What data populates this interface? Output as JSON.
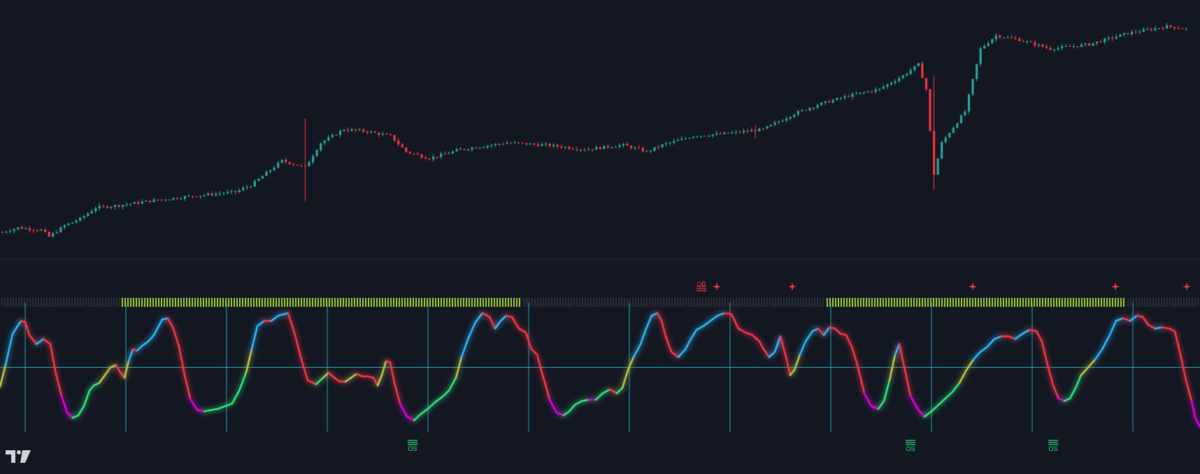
{
  "colors": {
    "background": "#131722",
    "separator": "#2a2e39",
    "candle_up": "#26a69a",
    "candle_down": "#f23645",
    "osc_bull": "#29b6f6",
    "osc_bear": "#f23645",
    "osc_rising_from_low": "#2ee37b",
    "osc_falling_low": "#d600d6",
    "osc_mid": "#b6c24a",
    "midline": "#26c6da",
    "cycle_line": "#26c6da",
    "regime_on": "#9acd32",
    "regime_off": "#2a2e39",
    "signal_os": "#2ee37b",
    "signal_ob": "#f23645"
  },
  "logo": {
    "icon": "tradingview-logo-icon"
  },
  "chart_data": [
    {
      "type": "candlestick",
      "title": "",
      "price_trend": [
        [
          0,
          0.04
        ],
        [
          4,
          0.06
        ],
        [
          10,
          0.05
        ],
        [
          12,
          0.02
        ],
        [
          16,
          0.07
        ],
        [
          20,
          0.1
        ],
        [
          24,
          0.15
        ],
        [
          30,
          0.16
        ],
        [
          38,
          0.18
        ],
        [
          48,
          0.2
        ],
        [
          60,
          0.22
        ],
        [
          64,
          0.25
        ],
        [
          72,
          0.36
        ],
        [
          78,
          0.33
        ],
        [
          82,
          0.44
        ],
        [
          88,
          0.5
        ],
        [
          94,
          0.49
        ],
        [
          100,
          0.47
        ],
        [
          104,
          0.4
        ],
        [
          110,
          0.37
        ],
        [
          118,
          0.41
        ],
        [
          130,
          0.44
        ],
        [
          140,
          0.43
        ],
        [
          150,
          0.41
        ],
        [
          160,
          0.43
        ],
        [
          166,
          0.4
        ],
        [
          170,
          0.43
        ],
        [
          178,
          0.47
        ],
        [
          186,
          0.48
        ],
        [
          196,
          0.5
        ],
        [
          204,
          0.57
        ],
        [
          210,
          0.61
        ],
        [
          218,
          0.65
        ],
        [
          226,
          0.68
        ],
        [
          232,
          0.74
        ],
        [
          236,
          0.79
        ],
        [
          238,
          0.68
        ],
        [
          240,
          0.3
        ],
        [
          242,
          0.44
        ],
        [
          248,
          0.58
        ],
        [
          252,
          0.86
        ],
        [
          256,
          0.92
        ],
        [
          262,
          0.9
        ],
        [
          270,
          0.86
        ],
        [
          280,
          0.88
        ],
        [
          290,
          0.93
        ],
        [
          300,
          0.96
        ],
        [
          305,
          0.95
        ]
      ],
      "wick_spikes": [
        [
          78,
          0.18,
          0.55
        ],
        [
          240,
          0.23,
          0.74
        ],
        [
          194,
          0.46,
          0.52
        ]
      ]
    },
    {
      "type": "line",
      "title": "",
      "xlim": [
        0,
        1716
      ],
      "ylim": [
        0,
        100
      ],
      "midline": 50,
      "series_points": [
        [
          0,
          35
        ],
        [
          8,
          52
        ],
        [
          18,
          76
        ],
        [
          30,
          86
        ],
        [
          36,
          85
        ],
        [
          42,
          75
        ],
        [
          52,
          68
        ],
        [
          62,
          72
        ],
        [
          72,
          68
        ],
        [
          80,
          45
        ],
        [
          88,
          28
        ],
        [
          96,
          15
        ],
        [
          104,
          11
        ],
        [
          112,
          13
        ],
        [
          120,
          20
        ],
        [
          128,
          32
        ],
        [
          134,
          36
        ],
        [
          142,
          38
        ],
        [
          150,
          44
        ],
        [
          158,
          50
        ],
        [
          166,
          52
        ],
        [
          172,
          46
        ],
        [
          178,
          42
        ],
        [
          184,
          55
        ],
        [
          190,
          64
        ],
        [
          196,
          63
        ],
        [
          204,
          67
        ],
        [
          212,
          70
        ],
        [
          220,
          75
        ],
        [
          232,
          87
        ],
        [
          240,
          88
        ],
        [
          248,
          80
        ],
        [
          256,
          66
        ],
        [
          264,
          44
        ],
        [
          272,
          26
        ],
        [
          282,
          17
        ],
        [
          292,
          16
        ],
        [
          302,
          17
        ],
        [
          312,
          18
        ],
        [
          322,
          20
        ],
        [
          332,
          22
        ],
        [
          342,
          32
        ],
        [
          352,
          46
        ],
        [
          360,
          64
        ],
        [
          368,
          82
        ],
        [
          378,
          86
        ],
        [
          388,
          86
        ],
        [
          398,
          90
        ],
        [
          412,
          92
        ],
        [
          422,
          75
        ],
        [
          430,
          58
        ],
        [
          440,
          40
        ],
        [
          452,
          37
        ],
        [
          462,
          42
        ],
        [
          470,
          46
        ],
        [
          478,
          42
        ],
        [
          486,
          39
        ],
        [
          494,
          39
        ],
        [
          502,
          42
        ],
        [
          510,
          45
        ],
        [
          518,
          43
        ],
        [
          526,
          43
        ],
        [
          534,
          42
        ],
        [
          540,
          36
        ],
        [
          546,
          44
        ],
        [
          552,
          55
        ],
        [
          558,
          54
        ],
        [
          564,
          38
        ],
        [
          572,
          22
        ],
        [
          582,
          12
        ],
        [
          592,
          9
        ],
        [
          602,
          14
        ],
        [
          612,
          18
        ],
        [
          622,
          23
        ],
        [
          632,
          27
        ],
        [
          642,
          32
        ],
        [
          652,
          42
        ],
        [
          660,
          58
        ],
        [
          670,
          73
        ],
        [
          680,
          85
        ],
        [
          690,
          92
        ],
        [
          700,
          89
        ],
        [
          708,
          80
        ],
        [
          716,
          86
        ],
        [
          724,
          90
        ],
        [
          732,
          89
        ],
        [
          742,
          80
        ],
        [
          752,
          77
        ],
        [
          760,
          64
        ],
        [
          768,
          60
        ],
        [
          776,
          44
        ],
        [
          786,
          25
        ],
        [
          796,
          15
        ],
        [
          806,
          13
        ],
        [
          814,
          16
        ],
        [
          822,
          21
        ],
        [
          832,
          24
        ],
        [
          842,
          25
        ],
        [
          852,
          25
        ],
        [
          862,
          30
        ],
        [
          872,
          33
        ],
        [
          882,
          30
        ],
        [
          890,
          34
        ],
        [
          898,
          48
        ],
        [
          906,
          58
        ],
        [
          916,
          68
        ],
        [
          924,
          80
        ],
        [
          932,
          90
        ],
        [
          940,
          92
        ],
        [
          946,
          86
        ],
        [
          952,
          74
        ],
        [
          960,
          62
        ],
        [
          970,
          58
        ],
        [
          980,
          64
        ],
        [
          988,
          72
        ],
        [
          996,
          79
        ],
        [
          1006,
          82
        ],
        [
          1016,
          86
        ],
        [
          1026,
          90
        ],
        [
          1036,
          92
        ],
        [
          1046,
          91
        ],
        [
          1056,
          80
        ],
        [
          1066,
          77
        ],
        [
          1076,
          75
        ],
        [
          1086,
          70
        ],
        [
          1092,
          64
        ],
        [
          1100,
          58
        ],
        [
          1108,
          62
        ],
        [
          1116,
          74
        ],
        [
          1124,
          58
        ],
        [
          1130,
          44
        ],
        [
          1136,
          48
        ],
        [
          1144,
          60
        ],
        [
          1152,
          70
        ],
        [
          1162,
          78
        ],
        [
          1170,
          80
        ],
        [
          1178,
          75
        ],
        [
          1186,
          81
        ],
        [
          1194,
          80
        ],
        [
          1202,
          76
        ],
        [
          1210,
          75
        ],
        [
          1218,
          66
        ],
        [
          1226,
          52
        ],
        [
          1236,
          30
        ],
        [
          1246,
          20
        ],
        [
          1256,
          18
        ],
        [
          1264,
          24
        ],
        [
          1272,
          40
        ],
        [
          1280,
          60
        ],
        [
          1286,
          68
        ],
        [
          1294,
          48
        ],
        [
          1302,
          28
        ],
        [
          1312,
          18
        ],
        [
          1322,
          12
        ],
        [
          1332,
          16
        ],
        [
          1342,
          21
        ],
        [
          1352,
          26
        ],
        [
          1362,
          31
        ],
        [
          1372,
          38
        ],
        [
          1382,
          48
        ],
        [
          1392,
          56
        ],
        [
          1402,
          62
        ],
        [
          1412,
          66
        ],
        [
          1422,
          72
        ],
        [
          1432,
          74
        ],
        [
          1442,
          74
        ],
        [
          1452,
          72
        ],
        [
          1462,
          76
        ],
        [
          1472,
          79
        ],
        [
          1482,
          78
        ],
        [
          1490,
          70
        ],
        [
          1498,
          52
        ],
        [
          1506,
          36
        ],
        [
          1514,
          26
        ],
        [
          1522,
          24
        ],
        [
          1530,
          26
        ],
        [
          1538,
          34
        ],
        [
          1546,
          44
        ],
        [
          1556,
          50
        ],
        [
          1566,
          56
        ],
        [
          1576,
          64
        ],
        [
          1586,
          74
        ],
        [
          1596,
          86
        ],
        [
          1606,
          88
        ],
        [
          1616,
          86
        ],
        [
          1626,
          90
        ],
        [
          1634,
          89
        ],
        [
          1642,
          83
        ],
        [
          1652,
          80
        ],
        [
          1662,
          81
        ],
        [
          1672,
          80
        ],
        [
          1680,
          78
        ],
        [
          1688,
          60
        ],
        [
          1696,
          40
        ],
        [
          1704,
          24
        ],
        [
          1710,
          10
        ],
        [
          1716,
          4
        ]
      ],
      "cycle_lines_x": [
        36,
        180,
        324,
        468,
        612,
        756,
        900,
        1044,
        1188,
        1332,
        1476,
        1620
      ],
      "regime_bands": [
        {
          "start": 0,
          "end": 172,
          "state": "off"
        },
        {
          "start": 172,
          "end": 746,
          "state": "on"
        },
        {
          "start": 746,
          "end": 1180,
          "state": "off"
        },
        {
          "start": 1180,
          "end": 1610,
          "state": "on"
        },
        {
          "start": 1610,
          "end": 1716,
          "state": "off"
        }
      ],
      "signals": [
        {
          "x": 1003,
          "position": "top",
          "label": "OB",
          "kind": "ob"
        },
        {
          "x": 1025,
          "position": "top",
          "label": "",
          "kind": "star"
        },
        {
          "x": 1133,
          "position": "top",
          "label": "",
          "kind": "star"
        },
        {
          "x": 1391,
          "position": "top",
          "label": "",
          "kind": "star"
        },
        {
          "x": 1595,
          "position": "top",
          "label": "",
          "kind": "star"
        },
        {
          "x": 1697,
          "position": "top",
          "label": "",
          "kind": "star"
        },
        {
          "x": 590,
          "position": "bottom",
          "label": "OS",
          "kind": "os"
        },
        {
          "x": 1302,
          "position": "bottom",
          "label": "OS",
          "kind": "os"
        },
        {
          "x": 1506,
          "position": "bottom",
          "label": "OS",
          "kind": "os"
        }
      ]
    }
  ]
}
